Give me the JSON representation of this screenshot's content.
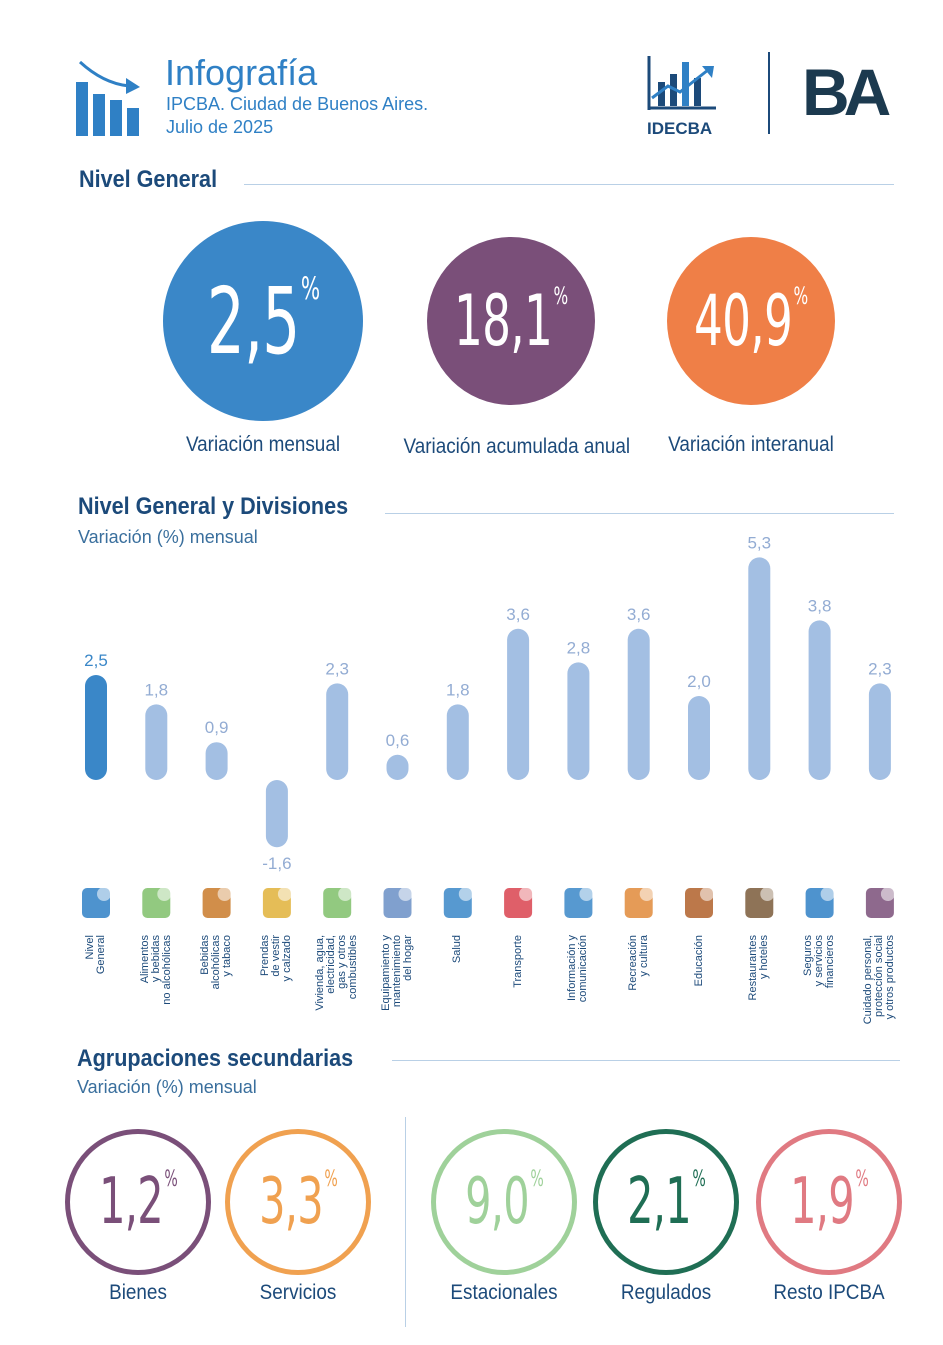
{
  "header": {
    "title": "Infografía",
    "subtitle": "IPCBA. Ciudad de Buenos Aires.",
    "date": "Julio de 2025",
    "org_logo_text": "IDECBA",
    "ba_logo_text": "BA"
  },
  "nivel_general": {
    "title": "Nivel General",
    "percent_sign": "%",
    "items": [
      {
        "value": "2,5",
        "label": "Variación mensual",
        "color": "#3a87c8"
      },
      {
        "value": "18,1",
        "label": "Variación acumulada anual",
        "color": "#7a4f79"
      },
      {
        "value": "40,9",
        "label": "Variación interanual",
        "color": "#ef7f47"
      }
    ]
  },
  "chart_data": {
    "type": "bar",
    "title": "Nivel General y Divisiones",
    "ylabel": "Variación (%) mensual",
    "categories": [
      [
        "Nivel",
        "General"
      ],
      [
        "Alimentos",
        "y bebidas",
        "no alcohólicas"
      ],
      [
        "Bebidas",
        "alcohólicas",
        "y tabaco"
      ],
      [
        "Prendas",
        "de vestir",
        "y calzado"
      ],
      [
        "Vivienda, agua,",
        "electricidad,",
        "gas y otros",
        "combustibles"
      ],
      [
        "Equipamiento y",
        "mantenimiento",
        "del hogar"
      ],
      [
        "Salud"
      ],
      [
        "Transporte"
      ],
      [
        "Información y",
        "comunicación"
      ],
      [
        "Recreación",
        "y cultura"
      ],
      [
        "Educación"
      ],
      [
        "Restaurantes",
        "y hoteles"
      ],
      [
        "Seguros",
        "y servicios",
        "financieros"
      ],
      [
        "Cuidado personal,",
        "protección social",
        "y otros productos"
      ]
    ],
    "values": [
      2.5,
      1.8,
      0.9,
      -1.6,
      2.3,
      0.6,
      1.8,
      3.6,
      2.8,
      3.6,
      2.0,
      5.3,
      3.8,
      2.3
    ],
    "labels": [
      "2,5",
      "1,8",
      "0,9",
      "-1,6",
      "2,3",
      "0,6",
      "1,8",
      "3,6",
      "2,8",
      "3,6",
      "2,0",
      "5,3",
      "3,8",
      "2,3"
    ],
    "ylim": [
      -1.6,
      5.3
    ],
    "grid": false,
    "colors": {
      "highlight": "#3a87c8",
      "default": "#a3bfe3",
      "label": "#93acd3"
    }
  },
  "agrupaciones": {
    "title": "Agrupaciones secundarias",
    "subtitle": "Variación (%) mensual",
    "percent_sign": "%",
    "items": [
      {
        "value": "1,2",
        "label": "Bienes",
        "color": "#7a4f79"
      },
      {
        "value": "3,3",
        "label": "Servicios",
        "color": "#f0a150"
      },
      {
        "value": "9,0",
        "label": "Estacionales",
        "color": "#9fd19a"
      },
      {
        "value": "2,1",
        "label": "Regulados",
        "color": "#1f6e54"
      },
      {
        "value": "1,9",
        "label": "Resto IPCBA",
        "color": "#e07a82"
      }
    ]
  }
}
